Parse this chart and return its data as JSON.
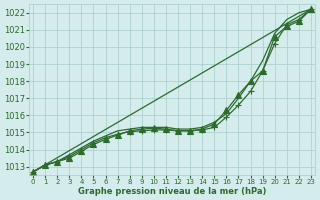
{
  "background_color": "#d4ecec",
  "grid_color": "#a8cccc",
  "line_color": "#2d6b2d",
  "text_color": "#2d6b2d",
  "xlabel": "Graphe pression niveau de la mer (hPa)",
  "ylim": [
    1012.5,
    1022.5
  ],
  "xlim": [
    -0.3,
    23.3
  ],
  "yticks": [
    1013,
    1014,
    1015,
    1016,
    1017,
    1018,
    1019,
    1020,
    1021,
    1022
  ],
  "xticks": [
    0,
    1,
    2,
    3,
    4,
    5,
    6,
    7,
    8,
    9,
    10,
    11,
    12,
    13,
    14,
    15,
    16,
    17,
    18,
    19,
    20,
    21,
    22,
    23
  ],
  "series": [
    {
      "x": [
        0,
        23
      ],
      "y": [
        1012.7,
        1022.2
      ],
      "marker": null,
      "linewidth": 0.9
    },
    {
      "x": [
        0,
        1,
        2,
        3,
        4,
        5,
        6,
        7,
        8,
        9,
        10,
        11,
        12,
        13,
        14,
        15,
        16,
        17,
        18,
        19,
        20,
        21,
        22,
        23
      ],
      "y": [
        1012.7,
        1013.1,
        1013.3,
        1013.6,
        1014.0,
        1014.4,
        1014.7,
        1014.9,
        1015.05,
        1015.1,
        1015.15,
        1015.15,
        1015.1,
        1015.1,
        1015.15,
        1015.3,
        1015.9,
        1016.6,
        1017.4,
        1018.6,
        1020.2,
        1021.3,
        1021.6,
        1022.2
      ],
      "marker": "+",
      "markersize": 4,
      "linewidth": 0.9
    },
    {
      "x": [
        0,
        1,
        2,
        3,
        4,
        5,
        6,
        7,
        8,
        9,
        10,
        11,
        12,
        13,
        14,
        15,
        16,
        17,
        18,
        19,
        20,
        21,
        22,
        23
      ],
      "y": [
        1012.7,
        1013.1,
        1013.3,
        1013.7,
        1014.1,
        1014.5,
        1014.8,
        1015.1,
        1015.2,
        1015.3,
        1015.3,
        1015.3,
        1015.2,
        1015.2,
        1015.3,
        1015.6,
        1016.1,
        1017.0,
        1018.0,
        1019.2,
        1020.8,
        1021.6,
        1022.0,
        1022.2
      ],
      "marker": null,
      "linewidth": 0.9
    },
    {
      "x": [
        0,
        1,
        2,
        3,
        4,
        5,
        6,
        7,
        8,
        9,
        10,
        11,
        12,
        13,
        14,
        15,
        16,
        17,
        18,
        19,
        20,
        21,
        22,
        23
      ],
      "y": [
        1012.7,
        1013.1,
        1013.3,
        1013.5,
        1013.9,
        1014.3,
        1014.6,
        1014.85,
        1015.1,
        1015.2,
        1015.25,
        1015.2,
        1015.1,
        1015.1,
        1015.2,
        1015.5,
        1016.3,
        1017.2,
        1018.0,
        1018.6,
        1020.6,
        1021.2,
        1021.5,
        1022.2
      ],
      "marker": "^",
      "markersize": 4,
      "linewidth": 0.9
    }
  ]
}
